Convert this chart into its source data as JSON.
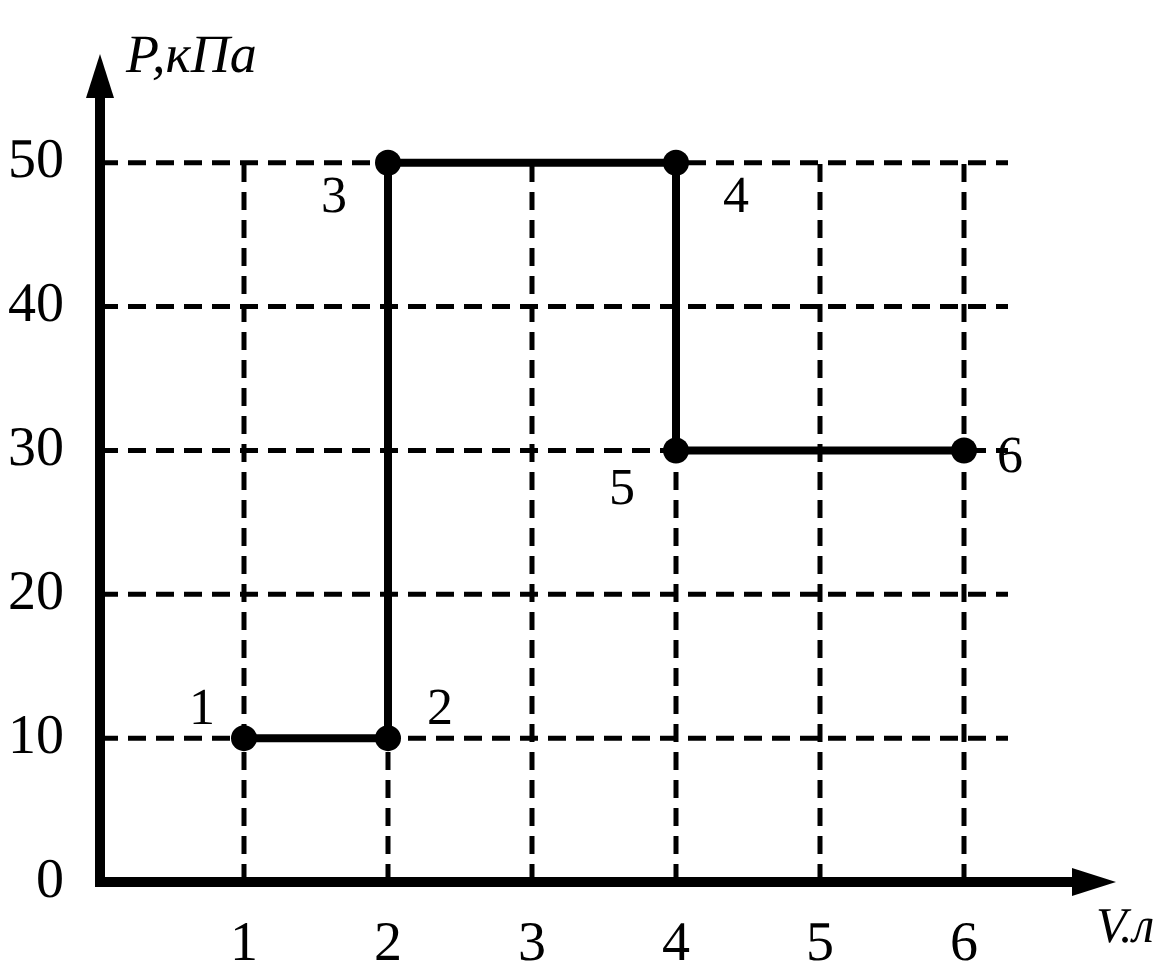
{
  "chart_data": {
    "type": "line",
    "xlabel": "V.л",
    "ylabel": "P,кПа",
    "x": [
      1,
      2,
      2,
      4,
      4,
      6
    ],
    "series": [
      {
        "color": "#000000",
        "values": [
          10,
          10,
          50,
          50,
          30,
          30
        ]
      }
    ],
    "xlim": [
      0,
      6.75
    ],
    "ylim": [
      0,
      54.5
    ],
    "xticks": [
      1,
      2,
      3,
      4,
      5,
      6
    ],
    "yticks": [
      0,
      10,
      20,
      30,
      40,
      50
    ],
    "grid": true,
    "legend": false,
    "marker": "circle",
    "line_style": "solid",
    "annotations": [
      {
        "text": "1",
        "x": 1,
        "y": 10
      },
      {
        "text": "2",
        "x": 2,
        "y": 10
      },
      {
        "text": "3",
        "x": 2,
        "y": 50
      },
      {
        "text": "4",
        "x": 4,
        "y": 50
      },
      {
        "text": "5",
        "x": 4,
        "y": 30
      },
      {
        "text": "6",
        "x": 6,
        "y": 30
      }
    ]
  }
}
